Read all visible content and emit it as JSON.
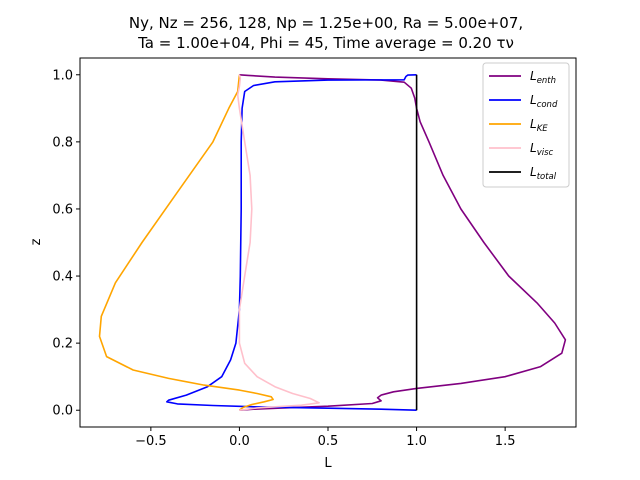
{
  "chart_data": {
    "type": "line",
    "title": "Ny, Nz = 256, 128, Np = 1.25e+00, Ra = 5.00e+07,",
    "subtitle": "Ta = 1.00e+04, Phi = 45, Time average = 0.20 τν",
    "xlabel": "L",
    "ylabel": "z",
    "xlim": [
      -0.9,
      1.9
    ],
    "ylim": [
      -0.05,
      1.05
    ],
    "xticks": [
      -0.5,
      0.0,
      0.5,
      1.0,
      1.5
    ],
    "xtick_labels": [
      "−0.5",
      "0.0",
      "0.5",
      "1.0",
      "1.5"
    ],
    "yticks": [
      0.0,
      0.2,
      0.4,
      0.6,
      0.8,
      1.0
    ],
    "ytick_labels": [
      "0.0",
      "0.2",
      "0.4",
      "0.6",
      "0.8",
      "1.0"
    ],
    "grid": false,
    "legend_position": "top-right",
    "series": [
      {
        "name": "L_enth",
        "label_base": "L",
        "label_sub": "enth",
        "color": "#800080",
        "points": [
          [
            0.0,
            1.0
          ],
          [
            0.05,
            0.998
          ],
          [
            0.2,
            0.993
          ],
          [
            0.5,
            0.988
          ],
          [
            0.8,
            0.984
          ],
          [
            0.93,
            0.978
          ],
          [
            0.97,
            0.96
          ],
          [
            0.99,
            0.93
          ],
          [
            1.0,
            0.9
          ],
          [
            1.02,
            0.86
          ],
          [
            1.07,
            0.8
          ],
          [
            1.15,
            0.7
          ],
          [
            1.25,
            0.6
          ],
          [
            1.38,
            0.5
          ],
          [
            1.52,
            0.4
          ],
          [
            1.68,
            0.32
          ],
          [
            1.78,
            0.26
          ],
          [
            1.84,
            0.21
          ],
          [
            1.82,
            0.17
          ],
          [
            1.7,
            0.13
          ],
          [
            1.5,
            0.1
          ],
          [
            1.25,
            0.08
          ],
          [
            1.0,
            0.065
          ],
          [
            0.87,
            0.055
          ],
          [
            0.8,
            0.045
          ],
          [
            0.78,
            0.037
          ],
          [
            0.8,
            0.028
          ],
          [
            0.75,
            0.02
          ],
          [
            0.5,
            0.012
          ],
          [
            0.25,
            0.007
          ],
          [
            0.08,
            0.003
          ],
          [
            0.0,
            0.0
          ]
        ]
      },
      {
        "name": "L_cond",
        "label_base": "L",
        "label_sub": "cond",
        "color": "#0000ff",
        "points": [
          [
            1.0,
            1.0
          ],
          [
            0.95,
            0.999
          ],
          [
            0.94,
            0.995
          ],
          [
            0.93,
            0.985
          ],
          [
            0.5,
            0.984
          ],
          [
            0.2,
            0.979
          ],
          [
            0.08,
            0.968
          ],
          [
            0.03,
            0.95
          ],
          [
            0.015,
            0.9
          ],
          [
            0.01,
            0.8
          ],
          [
            0.01,
            0.6
          ],
          [
            0.005,
            0.4
          ],
          [
            0.0,
            0.3
          ],
          [
            -0.02,
            0.2
          ],
          [
            -0.05,
            0.15
          ],
          [
            -0.1,
            0.1
          ],
          [
            -0.18,
            0.07
          ],
          [
            -0.3,
            0.045
          ],
          [
            -0.4,
            0.03
          ],
          [
            -0.41,
            0.025
          ],
          [
            -0.35,
            0.019
          ],
          [
            -0.15,
            0.014
          ],
          [
            0.1,
            0.01
          ],
          [
            0.5,
            0.006
          ],
          [
            0.8,
            0.003
          ],
          [
            1.0,
            0.0
          ]
        ]
      },
      {
        "name": "L_KE",
        "label_base": "L",
        "label_sub": "KE",
        "color": "#ffa500",
        "points": [
          [
            0.0,
            1.0
          ],
          [
            -0.01,
            0.95
          ],
          [
            -0.06,
            0.9
          ],
          [
            -0.15,
            0.8
          ],
          [
            -0.35,
            0.65
          ],
          [
            -0.55,
            0.5
          ],
          [
            -0.7,
            0.38
          ],
          [
            -0.78,
            0.28
          ],
          [
            -0.79,
            0.22
          ],
          [
            -0.75,
            0.16
          ],
          [
            -0.6,
            0.12
          ],
          [
            -0.4,
            0.095
          ],
          [
            -0.2,
            0.075
          ],
          [
            0.0,
            0.06
          ],
          [
            0.1,
            0.05
          ],
          [
            0.18,
            0.04
          ],
          [
            0.19,
            0.032
          ],
          [
            0.14,
            0.025
          ],
          [
            0.07,
            0.017
          ],
          [
            0.02,
            0.008
          ],
          [
            0.0,
            0.0
          ]
        ]
      },
      {
        "name": "L_visc",
        "label_base": "L",
        "label_sub": "visc",
        "color": "#ffc0cb",
        "points": [
          [
            0.0,
            1.0
          ],
          [
            0.005,
            0.99
          ],
          [
            0.0,
            0.965
          ],
          [
            -0.01,
            0.94
          ],
          [
            0.0,
            0.9
          ],
          [
            0.03,
            0.8
          ],
          [
            0.06,
            0.7
          ],
          [
            0.07,
            0.6
          ],
          [
            0.06,
            0.5
          ],
          [
            0.03,
            0.4
          ],
          [
            0.0,
            0.3
          ],
          [
            0.0,
            0.2
          ],
          [
            0.03,
            0.14
          ],
          [
            0.1,
            0.1
          ],
          [
            0.2,
            0.07
          ],
          [
            0.3,
            0.05
          ],
          [
            0.4,
            0.035
          ],
          [
            0.45,
            0.022
          ],
          [
            0.35,
            0.015
          ],
          [
            0.1,
            0.007
          ],
          [
            0.0,
            0.0
          ]
        ]
      },
      {
        "name": "L_total",
        "label_base": "L",
        "label_sub": "total",
        "color": "#000000",
        "points": [
          [
            1.0,
            0.0
          ],
          [
            1.0,
            0.25
          ],
          [
            1.0,
            0.5
          ],
          [
            1.0,
            0.75
          ],
          [
            1.0,
            1.0
          ]
        ]
      }
    ]
  }
}
